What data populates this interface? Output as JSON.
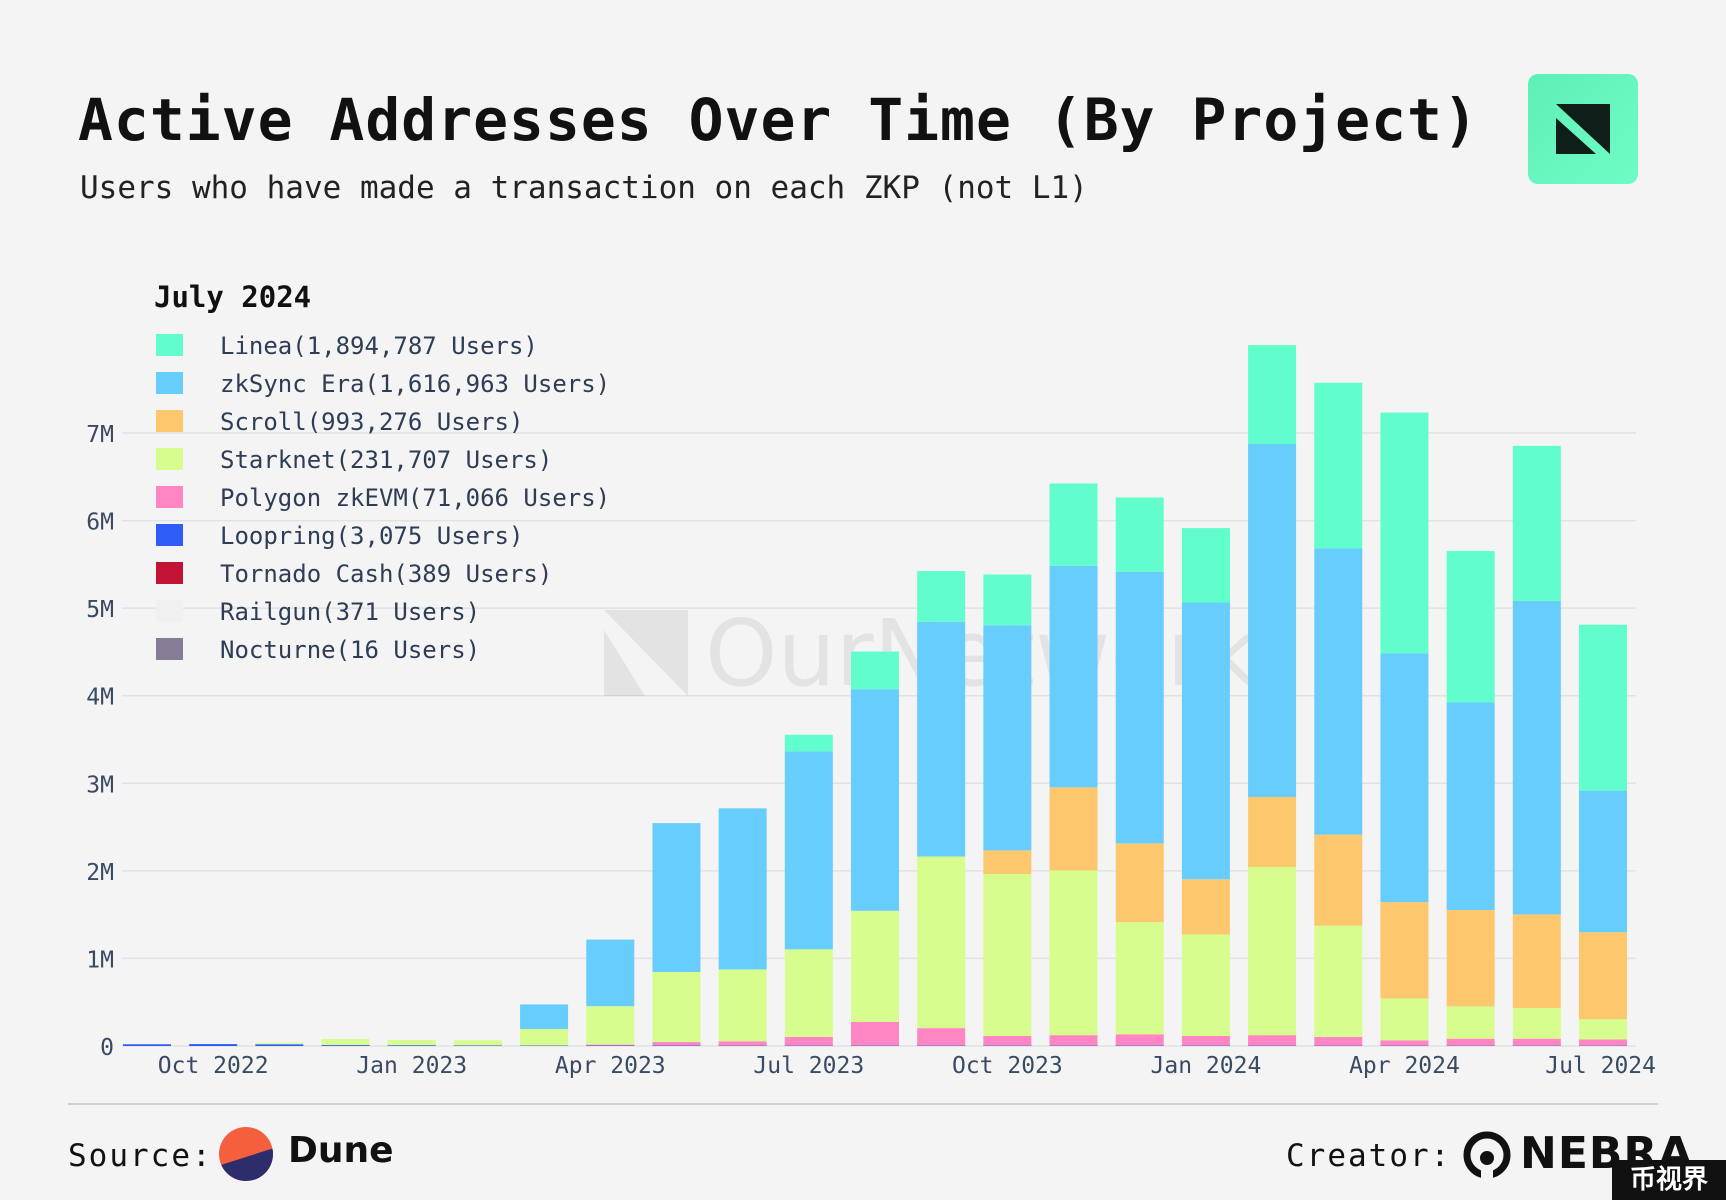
{
  "header": {
    "title": "Active Addresses Over Time (By Project)",
    "subtitle": "Users who have made a transaction on each ZKP (not L1)"
  },
  "watermark": {
    "text": "OurNetwork"
  },
  "legend": {
    "title": "July 2024",
    "items": [
      {
        "label": "Linea(1,894,787 Users)",
        "color": "#62fdcc"
      },
      {
        "label": "zkSync Era(1,616,963 Users)",
        "color": "#67cdfd"
      },
      {
        "label": "Scroll(993,276 Users)",
        "color": "#fdc86d"
      },
      {
        "label": "Starknet(231,707 Users)",
        "color": "#d7fd8e"
      },
      {
        "label": "Polygon zkEVM(71,066 Users)",
        "color": "#ff86c3"
      },
      {
        "label": "Loopring(3,075 Users)",
        "color": "#2f5cf6"
      },
      {
        "label": "Tornado Cash(389 Users)",
        "color": "#c21335"
      },
      {
        "label": "Railgun(371 Users)",
        "color": "#f0f0f0"
      },
      {
        "label": "Nocturne(16 Users)",
        "color": "#857c96"
      }
    ]
  },
  "chart_data": {
    "type": "bar",
    "stacked": true,
    "x": [
      "2022-09",
      "2022-10",
      "2022-11",
      "2022-12",
      "2023-01",
      "2023-02",
      "2023-03",
      "2023-04",
      "2023-05",
      "2023-06",
      "2023-07",
      "2023-08",
      "2023-09",
      "2023-10",
      "2023-11",
      "2023-12",
      "2024-01",
      "2024-02",
      "2024-03",
      "2024-04",
      "2024-05",
      "2024-06",
      "2024-07"
    ],
    "x_ticks": [
      {
        "x": "2022-10",
        "label": "Oct 2022"
      },
      {
        "x": "2023-01",
        "label": "Jan 2023"
      },
      {
        "x": "2023-04",
        "label": "Apr 2023"
      },
      {
        "x": "2023-07",
        "label": "Jul 2023"
      },
      {
        "x": "2023-10",
        "label": "Oct 2023"
      },
      {
        "x": "2024-01",
        "label": "Jan 2024"
      },
      {
        "x": "2024-04",
        "label": "Apr 2024"
      },
      {
        "x": "2024-07",
        "label": "Jul 2024"
      }
    ],
    "series": [
      {
        "name": "Loopring",
        "color": "#2f5cf6",
        "values": [
          20000,
          22000,
          20000,
          10000,
          8000,
          6000,
          5000,
          5000,
          5000,
          4000,
          4000,
          4000,
          4000,
          4000,
          4000,
          4000,
          4000,
          4000,
          3500,
          3500,
          3200,
          3100,
          3075
        ]
      },
      {
        "name": "Polygon zkEVM",
        "color": "#ff86c3",
        "values": [
          0,
          0,
          0,
          0,
          0,
          0,
          0,
          10000,
          40000,
          50000,
          100000,
          270000,
          200000,
          110000,
          120000,
          130000,
          110000,
          120000,
          100000,
          60000,
          80000,
          80000,
          71066
        ]
      },
      {
        "name": "Starknet",
        "color": "#d7fd8e",
        "values": [
          0,
          0,
          15000,
          70000,
          60000,
          60000,
          190000,
          440000,
          800000,
          820000,
          1000000,
          1270000,
          1960000,
          1850000,
          1880000,
          1280000,
          1160000,
          1920000,
          1270000,
          480000,
          370000,
          350000,
          231707
        ]
      },
      {
        "name": "Scroll",
        "color": "#fdc86d",
        "values": [
          0,
          0,
          0,
          0,
          0,
          0,
          0,
          0,
          0,
          0,
          0,
          0,
          0,
          270000,
          950000,
          900000,
          630000,
          800000,
          1040000,
          1100000,
          1100000,
          1070000,
          993276
        ]
      },
      {
        "name": "zkSync Era",
        "color": "#67cdfd",
        "values": [
          0,
          0,
          0,
          0,
          0,
          0,
          280000,
          760000,
          1700000,
          1840000,
          2260000,
          2530000,
          2680000,
          2570000,
          2530000,
          3100000,
          3160000,
          4030000,
          3270000,
          2840000,
          2370000,
          3580000,
          1616963
        ]
      },
      {
        "name": "Linea",
        "color": "#62fdcc",
        "values": [
          0,
          0,
          0,
          0,
          0,
          0,
          0,
          0,
          0,
          0,
          190000,
          430000,
          580000,
          580000,
          940000,
          850000,
          850000,
          1130000,
          1890000,
          2750000,
          1730000,
          1770000,
          1894787
        ]
      }
    ],
    "ylim": [
      0,
      7800000
    ],
    "y_ticks": [
      {
        "value": 0,
        "label": "0"
      },
      {
        "value": 1000000,
        "label": "1M"
      },
      {
        "value": 2000000,
        "label": "2M"
      },
      {
        "value": 3000000,
        "label": "3M"
      },
      {
        "value": 4000000,
        "label": "4M"
      },
      {
        "value": 5000000,
        "label": "5M"
      },
      {
        "value": 6000000,
        "label": "6M"
      },
      {
        "value": 7000000,
        "label": "7M"
      }
    ],
    "grid": true,
    "xlabel": "",
    "ylabel": ""
  },
  "footer": {
    "source_label": "Source:",
    "source_name": "Dune",
    "creator_label": "Creator:",
    "creator_name": "NEBRA",
    "corner_mark": "币视界"
  }
}
